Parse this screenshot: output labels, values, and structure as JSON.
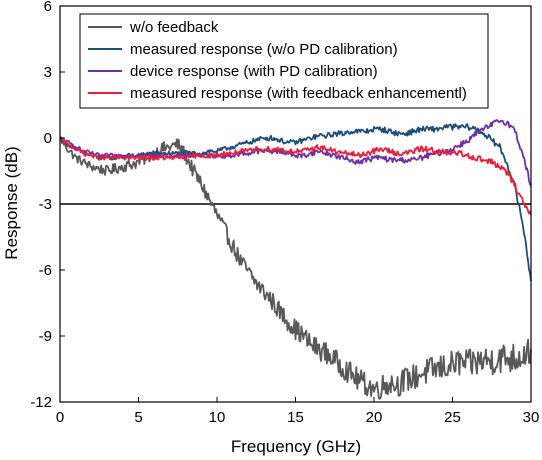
{
  "chart_data": {
    "type": "line",
    "xlabel": "Frequency (GHz)",
    "ylabel": "Response (dB)",
    "xlim": [
      0,
      30
    ],
    "ylim": [
      -12,
      6
    ],
    "x_ticks": [
      0,
      5,
      10,
      15,
      20,
      25,
      30
    ],
    "y_ticks": [
      6,
      3,
      0,
      -3,
      -6,
      -9,
      -12
    ],
    "grid": false,
    "legend_position": "top",
    "reference_lines": [
      {
        "y": -3,
        "color": "#000000"
      }
    ],
    "series": [
      {
        "name": "w/o feedback",
        "color": "#595959",
        "x": [
          0,
          0.5,
          1,
          1.5,
          2,
          2.5,
          3,
          3.5,
          4,
          4.5,
          5,
          5.5,
          6,
          6.5,
          7,
          7.5,
          8,
          8.5,
          9,
          9.5,
          10,
          10.5,
          11,
          11.5,
          12,
          12.5,
          13,
          13.5,
          14,
          14.5,
          15,
          15.5,
          16,
          16.5,
          17,
          17.5,
          18,
          18.5,
          19,
          19.5,
          20,
          20.5,
          21,
          21.5,
          22,
          22.5,
          23,
          23.5,
          24,
          24.5,
          25,
          25.5,
          26,
          26.5,
          27,
          27.5,
          28,
          28.5,
          29,
          29.5,
          30
        ],
        "values": [
          0,
          -0.5,
          -0.9,
          -1.1,
          -1.3,
          -1.4,
          -1.5,
          -1.4,
          -1.3,
          -1.2,
          -1.1,
          -0.9,
          -0.7,
          -0.5,
          -0.4,
          -0.3,
          -0.8,
          -1.5,
          -2.1,
          -2.8,
          -3.5,
          -4.2,
          -4.9,
          -5.6,
          -6.1,
          -6.6,
          -7.0,
          -7.4,
          -7.9,
          -8.3,
          -8.7,
          -9.0,
          -9.4,
          -9.6,
          -9.8,
          -10.1,
          -10.4,
          -10.7,
          -11.0,
          -11.2,
          -11.4,
          -11.3,
          -11.1,
          -11.2,
          -11.0,
          -10.9,
          -10.7,
          -10.6,
          -10.5,
          -10.4,
          -10.3,
          -10.2,
          -10.3,
          -10.2,
          -10.1,
          -10.1,
          -10.0,
          -10.0,
          -10.0,
          -9.8,
          -9.6
        ]
      },
      {
        "name": "measured response (w/o PD calibration)",
        "color": "#1f4e79",
        "x": [
          0,
          0.5,
          1,
          1.5,
          2,
          2.5,
          3,
          3.5,
          4,
          4.5,
          5,
          5.5,
          6,
          6.5,
          7,
          7.5,
          8,
          8.5,
          9,
          9.5,
          10,
          10.5,
          11,
          11.5,
          12,
          12.5,
          13,
          13.5,
          14,
          14.5,
          15,
          15.5,
          16,
          16.5,
          17,
          17.5,
          18,
          18.5,
          19,
          19.5,
          20,
          20.5,
          21,
          21.5,
          22,
          22.5,
          23,
          23.5,
          24,
          24.5,
          25,
          25.5,
          26,
          26.5,
          27,
          27.5,
          28,
          28.5,
          29,
          29.5,
          30
        ],
        "values": [
          0,
          -0.3,
          -0.5,
          -0.7,
          -0.8,
          -0.9,
          -0.9,
          -0.9,
          -0.8,
          -0.8,
          -0.8,
          -0.7,
          -0.7,
          -0.7,
          -0.7,
          -0.7,
          -0.7,
          -0.7,
          -0.7,
          -0.6,
          -0.6,
          -0.5,
          -0.4,
          -0.3,
          -0.2,
          -0.1,
          0.0,
          0.0,
          -0.1,
          -0.2,
          -0.2,
          -0.1,
          0.0,
          0.1,
          0.1,
          0.2,
          0.2,
          0.3,
          0.3,
          0.3,
          0.4,
          0.4,
          0.3,
          0.2,
          0.2,
          0.3,
          0.4,
          0.4,
          0.4,
          0.5,
          0.5,
          0.5,
          0.5,
          0.4,
          0.2,
          -0.1,
          -0.4,
          -1.2,
          -2.3,
          -4.0,
          -6.5
        ]
      },
      {
        "name": "device response (with PD calibration)",
        "color": "#7030a0",
        "x": [
          0,
          0.5,
          1,
          1.5,
          2,
          2.5,
          3,
          3.5,
          4,
          4.5,
          5,
          5.5,
          6,
          6.5,
          7,
          7.5,
          8,
          8.5,
          9,
          9.5,
          10,
          10.5,
          11,
          11.5,
          12,
          12.5,
          13,
          13.5,
          14,
          14.5,
          15,
          15.5,
          16,
          16.5,
          17,
          17.5,
          18,
          18.5,
          19,
          19.5,
          20,
          20.5,
          21,
          21.5,
          22,
          22.5,
          23,
          23.5,
          24,
          24.5,
          25,
          25.5,
          26,
          26.5,
          27,
          27.5,
          28,
          28.5,
          29,
          29.5,
          30
        ],
        "values": [
          0,
          -0.2,
          -0.4,
          -0.6,
          -0.7,
          -0.8,
          -0.8,
          -0.8,
          -0.8,
          -0.8,
          -0.8,
          -0.8,
          -0.8,
          -0.8,
          -0.8,
          -0.8,
          -0.8,
          -0.8,
          -0.8,
          -0.8,
          -0.8,
          -0.8,
          -0.8,
          -0.7,
          -0.7,
          -0.6,
          -0.6,
          -0.6,
          -0.6,
          -0.7,
          -0.8,
          -0.8,
          -0.7,
          -0.6,
          -0.7,
          -0.8,
          -0.9,
          -1.0,
          -1.1,
          -1.0,
          -0.9,
          -0.9,
          -1.0,
          -1.0,
          -1.0,
          -1.0,
          -0.9,
          -0.8,
          -0.7,
          -0.6,
          -0.5,
          -0.3,
          -0.1,
          0.2,
          0.4,
          0.6,
          0.8,
          0.7,
          0.3,
          -0.8,
          -2.2
        ]
      },
      {
        "name": "measured response (with feedback enhancementl)",
        "color": "#e8203c",
        "x": [
          0,
          0.5,
          1,
          1.5,
          2,
          2.5,
          3,
          3.5,
          4,
          4.5,
          5,
          5.5,
          6,
          6.5,
          7,
          7.5,
          8,
          8.5,
          9,
          9.5,
          10,
          10.5,
          11,
          11.5,
          12,
          12.5,
          13,
          13.5,
          14,
          14.5,
          15,
          15.5,
          16,
          16.5,
          17,
          17.5,
          18,
          18.5,
          19,
          19.5,
          20,
          20.5,
          21,
          21.5,
          22,
          22.5,
          23,
          23.5,
          24,
          24.5,
          25,
          25.5,
          26,
          26.5,
          27,
          27.5,
          28,
          28.5,
          29,
          29.5,
          30
        ],
        "values": [
          0,
          -0.3,
          -0.5,
          -0.7,
          -0.8,
          -0.9,
          -0.9,
          -0.9,
          -0.9,
          -0.9,
          -0.9,
          -0.9,
          -0.9,
          -0.9,
          -0.9,
          -0.9,
          -0.9,
          -0.8,
          -0.8,
          -0.8,
          -0.8,
          -0.7,
          -0.7,
          -0.6,
          -0.6,
          -0.5,
          -0.5,
          -0.5,
          -0.5,
          -0.6,
          -0.6,
          -0.6,
          -0.5,
          -0.4,
          -0.5,
          -0.6,
          -0.7,
          -0.7,
          -0.8,
          -0.7,
          -0.6,
          -0.5,
          -0.6,
          -0.7,
          -0.7,
          -0.6,
          -0.5,
          -0.5,
          -0.6,
          -0.7,
          -0.7,
          -0.7,
          -0.8,
          -0.9,
          -1.0,
          -1.1,
          -1.3,
          -1.6,
          -2.2,
          -2.9,
          -3.5
        ]
      }
    ]
  }
}
